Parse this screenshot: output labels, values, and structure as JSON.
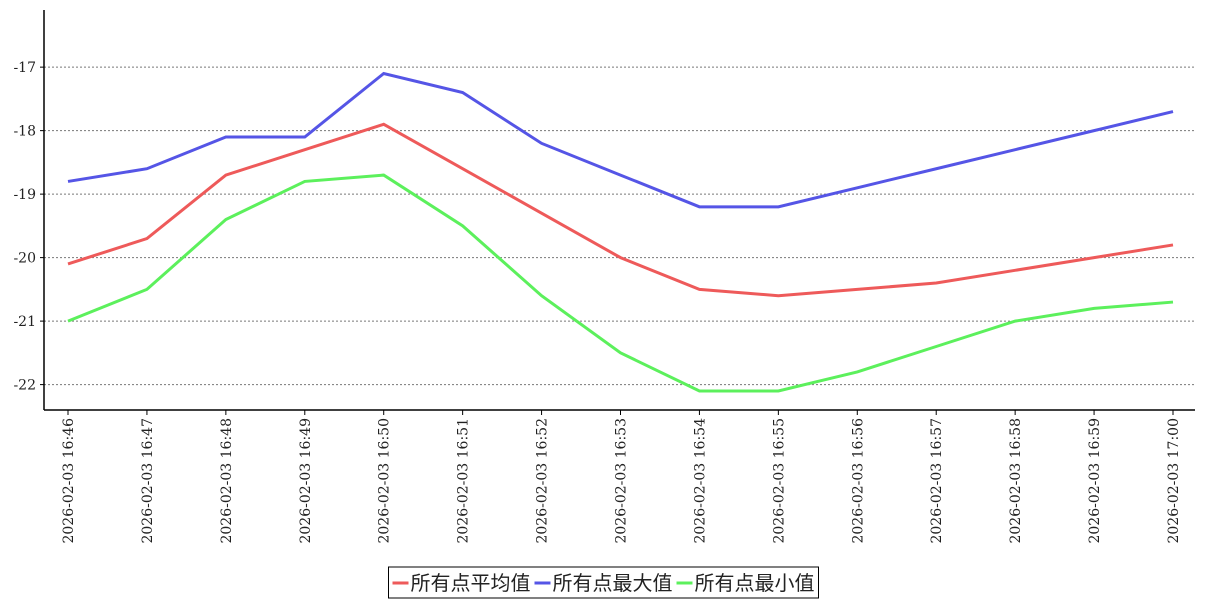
{
  "chart_data": {
    "type": "line",
    "x": [
      "2026-02-03 16:46",
      "2026-02-03 16:47",
      "2026-02-03 16:48",
      "2026-02-03 16:49",
      "2026-02-03 16:50",
      "2026-02-03 16:51",
      "2026-02-03 16:52",
      "2026-02-03 16:53",
      "2026-02-03 16:54",
      "2026-02-03 16:55",
      "2026-02-03 16:56",
      "2026-02-03 16:57",
      "2026-02-03 16:58",
      "2026-02-03 16:59",
      "2026-02-03 17:00"
    ],
    "series": [
      {
        "name": "所有点平均值",
        "color": "#ee5a5a",
        "values": [
          -20.1,
          -19.7,
          -18.7,
          -18.3,
          -17.9,
          -18.6,
          -19.3,
          -20.0,
          -20.5,
          -20.6,
          -20.5,
          -20.4,
          -20.2,
          -20.0,
          -19.8
        ]
      },
      {
        "name": "所有点最大值",
        "color": "#5555e6",
        "values": [
          -18.8,
          -18.6,
          -18.1,
          -18.1,
          -17.1,
          -17.4,
          -18.2,
          -18.7,
          -19.2,
          -19.2,
          -18.9,
          -18.6,
          -18.3,
          -18.0,
          -17.7
        ]
      },
      {
        "name": "所有点最小值",
        "color": "#5cf05c",
        "values": [
          -21.0,
          -20.5,
          -19.4,
          -18.8,
          -18.7,
          -19.5,
          -20.6,
          -21.5,
          -22.1,
          -22.1,
          -21.8,
          -21.4,
          -21.0,
          -20.8,
          -20.7
        ]
      }
    ],
    "ylim": [
      -22.4,
      -16.1
    ],
    "yticks": [
      -22,
      -21,
      -20,
      -19,
      -18,
      -17
    ],
    "grid": true,
    "legend": "bottom"
  }
}
